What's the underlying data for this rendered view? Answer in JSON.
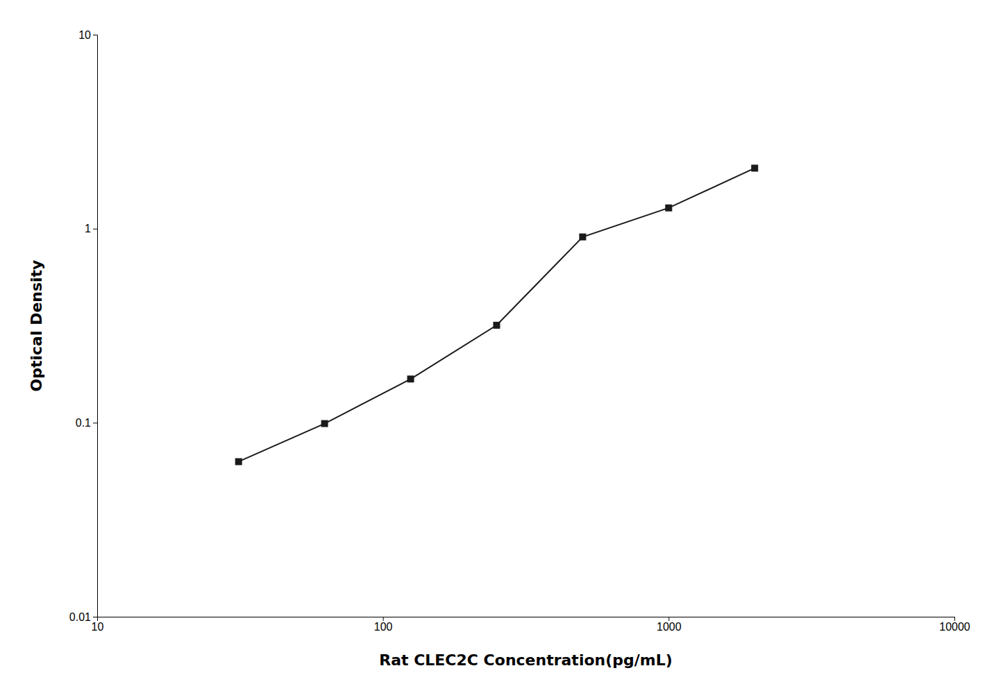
{
  "chart_data": {
    "type": "line",
    "x": [
      31.25,
      62.5,
      125,
      250,
      500,
      1000,
      2000
    ],
    "values": [
      0.063,
      0.099,
      0.168,
      0.318,
      0.907,
      1.28,
      2.052
    ],
    "xlabel": "Rat CLEC2C Concentration(pg/mL)",
    "ylabel": "Optical Density",
    "xlim": [
      10,
      10000
    ],
    "ylim": [
      0.01,
      10
    ],
    "xticks": [
      10,
      100,
      1000,
      10000
    ],
    "yticks": [
      0.01,
      0.1,
      1,
      10
    ],
    "log": true,
    "grid": false,
    "color": "#1a1a1a",
    "marker": "square"
  }
}
